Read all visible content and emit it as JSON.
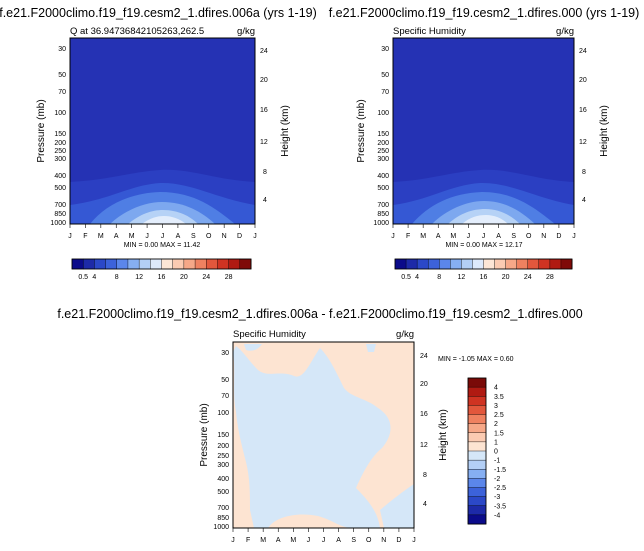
{
  "colors": {
    "deep_blue": "#1a1aa6",
    "bg_blue": "#2532b4",
    "mid_blue": "#2d44c4",
    "light_peach": "#fde4d2",
    "light_blue": "#d5e7f8"
  },
  "panels": {
    "top_left": {
      "title": "f.e21.F2000climo.f19_f19.cesm2_1.dfires.006a (yrs 1-19)",
      "subtitle_left": "Q at 36.94736842105263,262.5",
      "units": "g/kg",
      "minmax": "MIN =   0.00 MAX =  11.42"
    },
    "top_right": {
      "title": "f.e21.F2000climo.f19_f19.cesm2_1.dfires.000 (yrs 1-19)",
      "subtitle_left": "Specific Humidity",
      "units": "g/kg",
      "minmax": "MIN =   0.00 MAX =  12.17"
    },
    "bottom": {
      "title": "f.e21.F2000climo.f19_f19.cesm2_1.dfires.006a - f.e21.F2000climo.f19_f19.cesm2_1.dfires.000",
      "subtitle_left": "Specific Humidity",
      "units": "g/kg",
      "minmax": "MIN =  -1.05 MAX =   0.60"
    }
  },
  "chart_data": [
    {
      "type": "heatmap",
      "title": "f.e21.F2000climo.f19_f19.cesm2_1.dfires.006a (yrs 1-19)",
      "subtitle": "Q at 36.94736842105263,262.5",
      "xlabel": "",
      "ylabel": "Pressure (mb)",
      "ylabel_right": "Height (km)",
      "x_ticks": [
        "J",
        "F",
        "M",
        "A",
        "M",
        "J",
        "J",
        "A",
        "S",
        "O",
        "N",
        "D",
        "J"
      ],
      "y_ticks": [
        "30",
        "50",
        "70",
        "100",
        "150",
        "200",
        "250",
        "300",
        "400",
        "500",
        "700",
        "850",
        "1000"
      ],
      "y2_ticks": [
        "24",
        "20",
        "16",
        "12",
        "8",
        "4"
      ],
      "units": "g/kg",
      "min": 0.0,
      "max": 11.42,
      "colorbar_labels": [
        "0.5",
        "4",
        "8",
        "12",
        "16",
        "20",
        "24",
        "28"
      ]
    },
    {
      "type": "heatmap",
      "title": "f.e21.F2000climo.f19_f19.cesm2_1.dfires.000 (yrs 1-19)",
      "subtitle": "Specific Humidity",
      "xlabel": "",
      "ylabel": "Pressure (mb)",
      "ylabel_right": "Height (km)",
      "x_ticks": [
        "J",
        "F",
        "M",
        "A",
        "M",
        "J",
        "J",
        "A",
        "S",
        "O",
        "N",
        "D",
        "J"
      ],
      "y_ticks": [
        "30",
        "50",
        "70",
        "100",
        "150",
        "200",
        "250",
        "300",
        "400",
        "500",
        "700",
        "850",
        "1000"
      ],
      "y2_ticks": [
        "24",
        "20",
        "16",
        "12",
        "8",
        "4"
      ],
      "units": "g/kg",
      "min": 0.0,
      "max": 12.17,
      "colorbar_labels": [
        "0.5",
        "4",
        "8",
        "12",
        "16",
        "20",
        "24",
        "28"
      ]
    },
    {
      "type": "heatmap",
      "title": "f.e21.F2000climo.f19_f19.cesm2_1.dfires.006a - f.e21.F2000climo.f19_f19.cesm2_1.dfires.000",
      "subtitle": "Specific Humidity",
      "xlabel": "",
      "ylabel": "Pressure (mb)",
      "ylabel_right": "Height (km)",
      "x_ticks": [
        "J",
        "F",
        "M",
        "A",
        "M",
        "J",
        "J",
        "A",
        "S",
        "O",
        "N",
        "D",
        "J"
      ],
      "y_ticks": [
        "30",
        "50",
        "70",
        "100",
        "150",
        "200",
        "250",
        "300",
        "400",
        "500",
        "700",
        "850",
        "1000"
      ],
      "y2_ticks": [
        "24",
        "20",
        "16",
        "12",
        "8",
        "4"
      ],
      "units": "g/kg",
      "min": -1.05,
      "max": 0.6,
      "colorbar_labels": [
        "4",
        "3.5",
        "3",
        "2.5",
        "2",
        "1.5",
        "1",
        "0",
        "-1",
        "-1.5",
        "-2",
        "-2.5",
        "-3",
        "-3.5",
        "-4"
      ]
    }
  ],
  "colorbar_top": {
    "labels": [
      "0.5",
      "4",
      "8",
      "12",
      "16",
      "20",
      "24",
      "28"
    ],
    "colors": [
      "#0b0b8a",
      "#1d2aa8",
      "#2b48c8",
      "#3c62da",
      "#5b86ea",
      "#86aff2",
      "#b3cff6",
      "#dde9fb",
      "#fde6d6",
      "#fbcbb2",
      "#f6a888",
      "#ef8160",
      "#e2573c",
      "#cf3322",
      "#b01a12",
      "#7f0a08"
    ]
  },
  "colorbar_diff": {
    "labels": [
      "4",
      "3.5",
      "3",
      "2.5",
      "2",
      "1.5",
      "1",
      "0",
      "-1",
      "-1.5",
      "-2",
      "-2.5",
      "-3",
      "-3.5",
      "-4"
    ],
    "colors": [
      "#7a0a08",
      "#b01a12",
      "#cf3322",
      "#e2573c",
      "#ef8160",
      "#f6a888",
      "#fbcbb2",
      "#fde4d2",
      "#d5e7f8",
      "#b3cff6",
      "#86aff2",
      "#5b86ea",
      "#3c62da",
      "#2b48c8",
      "#1d2aa8",
      "#0b0b8a"
    ]
  }
}
